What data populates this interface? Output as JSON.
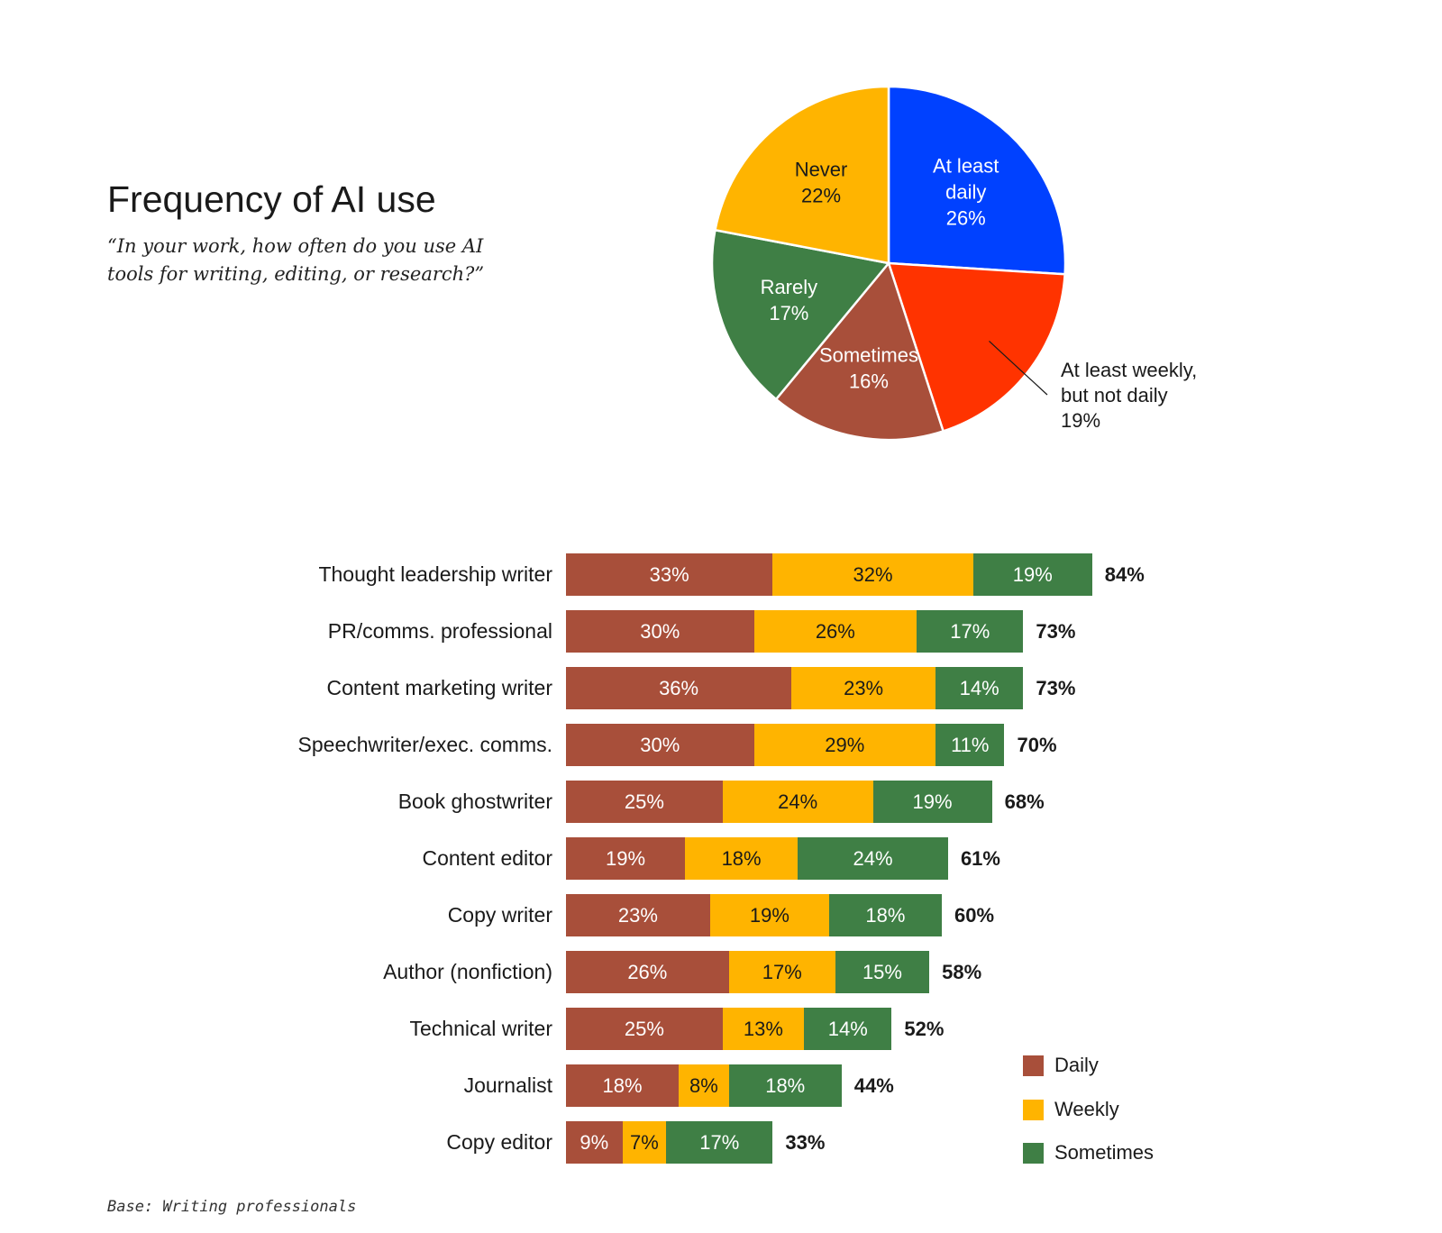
{
  "header": {
    "title": "Frequency of AI use",
    "subtitle": "“In your work, how often do you use AI tools for writing, editing, or research?”"
  },
  "footer": {
    "base_note": "Base: Writing professionals"
  },
  "chart_data": [
    {
      "type": "pie",
      "slices": [
        {
          "label": [
            "At least",
            "daily"
          ],
          "value": 26,
          "value_label": "26%",
          "color": "#0041FF",
          "text_color": "#ffffff"
        },
        {
          "label": [
            "At least weekly,",
            "but not daily"
          ],
          "value": 19,
          "value_label": "19%",
          "color": "#FF3300",
          "text_color": "#1a1a1a",
          "external": true
        },
        {
          "label": [
            "Sometimes"
          ],
          "value": 16,
          "value_label": "16%",
          "color": "#A84F3A",
          "text_color": "#ffffff"
        },
        {
          "label": [
            "Rarely"
          ],
          "value": 17,
          "value_label": "17%",
          "color": "#3F7F45",
          "text_color": "#ffffff"
        },
        {
          "label": [
            "Never"
          ],
          "value": 22,
          "value_label": "22%",
          "color": "#FFB400",
          "text_color": "#1a1a1a"
        }
      ]
    },
    {
      "type": "bar",
      "orientation": "horizontal",
      "stacked": true,
      "legend_position": "bottom-right",
      "series": [
        {
          "name": "Daily",
          "color": "#A84F3A",
          "text_color": "#ffffff"
        },
        {
          "name": "Weekly",
          "color": "#FFB400",
          "text_color": "#1a1a1a"
        },
        {
          "name": "Sometimes",
          "color": "#3F7F45",
          "text_color": "#ffffff"
        }
      ],
      "categories": [
        {
          "label": "Thought leadership writer",
          "values": [
            33,
            32,
            19
          ],
          "total": "84%"
        },
        {
          "label": "PR/comms. professional",
          "values": [
            30,
            26,
            17
          ],
          "total": "73%"
        },
        {
          "label": "Content marketing writer",
          "values": [
            36,
            23,
            14
          ],
          "total": "73%"
        },
        {
          "label": "Speechwriter/exec. comms.",
          "values": [
            30,
            29,
            11
          ],
          "total": "70%"
        },
        {
          "label": "Book ghostwriter",
          "values": [
            25,
            24,
            19
          ],
          "total": "68%"
        },
        {
          "label": "Content editor",
          "values": [
            19,
            18,
            24
          ],
          "total": "61%"
        },
        {
          "label": "Copy writer",
          "values": [
            23,
            19,
            18
          ],
          "total": "60%"
        },
        {
          "label": "Author (nonfiction)",
          "values": [
            26,
            17,
            15
          ],
          "total": "58%"
        },
        {
          "label": "Technical writer",
          "values": [
            25,
            13,
            14
          ],
          "total": "52%"
        },
        {
          "label": "Journalist",
          "values": [
            18,
            8,
            18
          ],
          "total": "44%"
        },
        {
          "label": "Copy editor",
          "values": [
            9,
            7,
            17
          ],
          "total": "33%"
        }
      ]
    }
  ]
}
